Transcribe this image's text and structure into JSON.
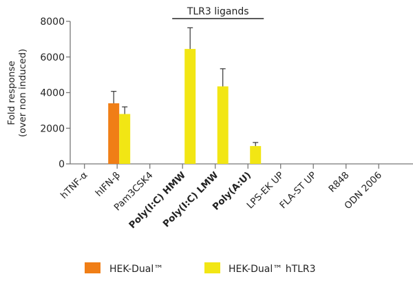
{
  "chart_data": {
    "type": "bar",
    "title": "",
    "annotation": "TLR3 ligands",
    "ylabel_lines": [
      "Fold response",
      "(over non induced)"
    ],
    "xlabel": "",
    "ylim": [
      0,
      8000
    ],
    "yticks": [
      0,
      2000,
      4000,
      6000,
      8000
    ],
    "grid": false,
    "legend_position": "bottom",
    "categories": [
      "hTNF-α",
      "hIFN-β",
      "Pam3CSK4",
      "Poly(I:C) HMW",
      "Poly(I:C) LMW",
      "Poly(A:U)",
      "LPS-EK UP",
      "FLA-ST UP",
      "R848",
      "ODN 2006"
    ],
    "bold_categories": [
      "Poly(I:C) HMW",
      "Poly(I:C) LMW",
      "Poly(A:U)"
    ],
    "annotation_spans": [
      "Poly(I:C) HMW",
      "Poly(A:U)"
    ],
    "series": [
      {
        "name": "HEK-Dual™",
        "color": "#F07E16",
        "values": [
          0,
          3400,
          0,
          0,
          0,
          0,
          0,
          0,
          0,
          0
        ],
        "error": [
          0,
          670,
          0,
          0,
          0,
          0,
          0,
          0,
          0,
          0
        ]
      },
      {
        "name": "HEK-Dual™ hTLR3",
        "color": "#F2E614",
        "values": [
          0,
          2800,
          0,
          6450,
          4350,
          1000,
          0,
          0,
          0,
          0
        ],
        "error": [
          0,
          400,
          0,
          1190,
          990,
          200,
          0,
          0,
          0,
          0
        ]
      }
    ]
  }
}
